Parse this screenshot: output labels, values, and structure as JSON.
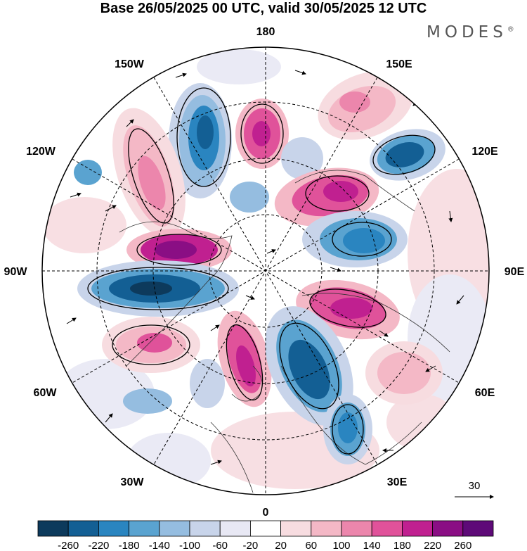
{
  "title": "Base 26/05/2025 00 UTC, valid 30/05/2025 12 UTC",
  "logo": "MODES",
  "logo_mark": "®",
  "longitudes": {
    "top": "180",
    "bottom": "0",
    "left": "90W",
    "right": "90E",
    "upper_left": "150W",
    "upper_right": "150E",
    "mid_upper_left": "120W",
    "mid_upper_right": "120E",
    "mid_lower_left": "60W",
    "mid_lower_right": "60E",
    "lower_left": "30W",
    "lower_right": "30E"
  },
  "vector_reference": "30",
  "colorbar": {
    "colors": [
      "#0d3a5c",
      "#135f94",
      "#2a85c0",
      "#5aa3d0",
      "#95bde0",
      "#c8d4ea",
      "#e8e8f4",
      "#ffffff",
      "#f7dce0",
      "#f4b8c6",
      "#ec86ac",
      "#e0529a",
      "#c02090",
      "#8a0e84",
      "#5e0a78"
    ],
    "tick_labels": [
      "-260",
      "-220",
      "-180",
      "-140",
      "-100",
      "-60",
      "-20",
      "20",
      "60",
      "100",
      "140",
      "180",
      "220",
      "260"
    ]
  },
  "colors": {
    "negative_strong": "#135f94",
    "negative_mid": "#5aa3d0",
    "negative_weak": "#c8d4ea",
    "positive_weak": "#f4b8c6",
    "positive_mid": "#e0529a",
    "positive_strong": "#8a0e84"
  }
}
